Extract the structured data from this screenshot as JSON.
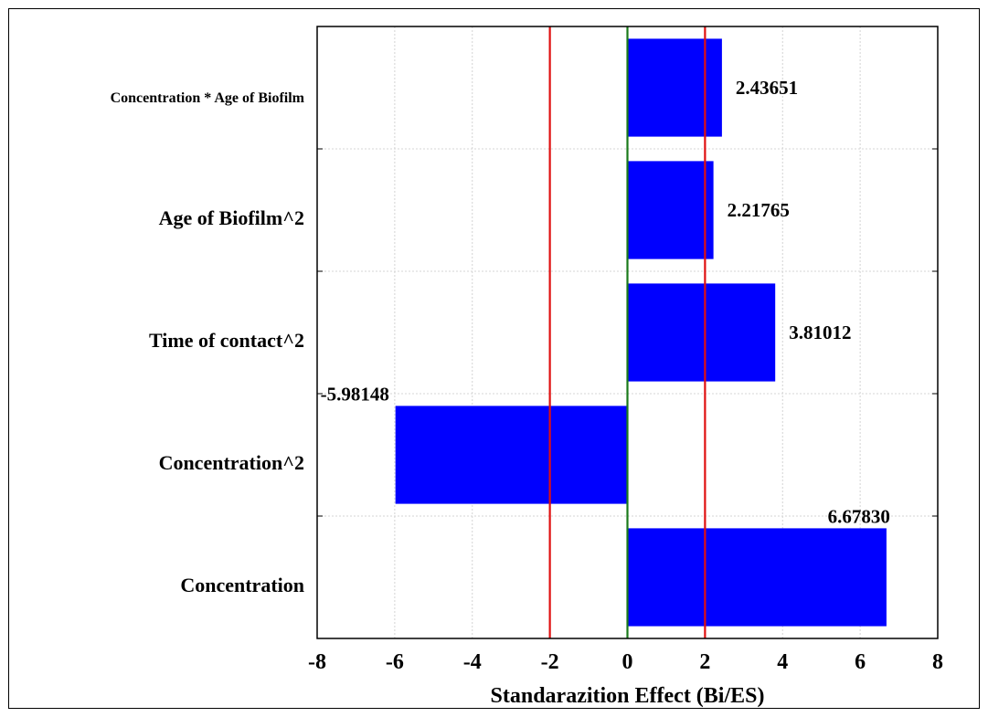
{
  "chart_data": {
    "type": "bar",
    "orientation": "horizontal",
    "categories": [
      "Concentration * Age of Biofilm",
      "Age of Biofilm^2",
      "Time of contact^2",
      "Concentration^2",
      "Concentration"
    ],
    "values": [
      2.43651,
      2.21765,
      3.81012,
      -5.98148,
      6.6783
    ],
    "value_labels": [
      "2.43651",
      "2.21765",
      "3.81012",
      "-5.98148",
      "6.67830"
    ],
    "title": "",
    "xlabel": "Standarazition Effect (Bi/ES)",
    "ylabel": "",
    "xlim": [
      -8,
      8
    ],
    "xticks": [
      -8,
      -6,
      -4,
      -2,
      0,
      2,
      4,
      6,
      8
    ],
    "reference_lines": [
      {
        "value": -2,
        "color": "#e01010"
      },
      {
        "value": 2,
        "color": "#e01010"
      },
      {
        "value": 0,
        "color": "#1a7a1a"
      }
    ],
    "grid": true,
    "bar_color": "#0000ff"
  }
}
